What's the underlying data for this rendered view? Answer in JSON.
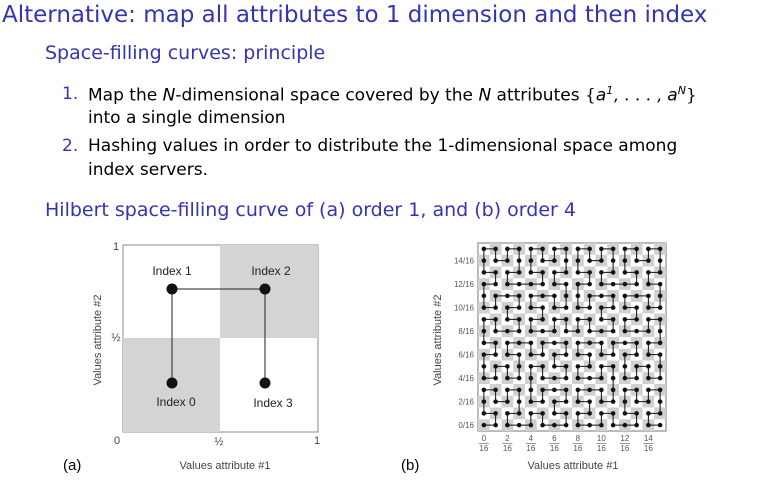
{
  "title": "Alternative: map all attributes to 1 dimension and then index",
  "subtitle": "Space-filling curves: principle",
  "list": [
    {
      "number": "1.",
      "line1": [
        "Map the ",
        "N",
        "-dimensional space covered by the ",
        "N",
        " attributes ",
        "{",
        "a",
        "1",
        ", . . . , ",
        "a",
        "N",
        "}"
      ],
      "line2": "into a single dimension"
    },
    {
      "number": "2.",
      "line1": [
        "Hashing values in order to distribute the 1-dimensional space among"
      ],
      "line2": "index servers."
    }
  ],
  "heading2": "Hilbert space-filling curve of (a) order 1, and (b) order 4",
  "figure_a": {
    "caption": "(a)",
    "x_label": "Values attribute #1",
    "y_label": "Values attribute #2",
    "x_ticks": [
      "0",
      "½",
      "1"
    ],
    "y_ticks": [
      "½",
      "1"
    ],
    "nodes": [
      "Index 0",
      "Index 1",
      "Index 2",
      "Index 3"
    ]
  },
  "figure_b": {
    "caption": "(b)",
    "x_label": "Values attribute #1",
    "y_label": "Values attribute #2",
    "x_ticks": [
      {
        "num": "0",
        "den": "16"
      },
      {
        "num": "2",
        "den": "16"
      },
      {
        "num": "4",
        "den": "16"
      },
      {
        "num": "6",
        "den": "16"
      },
      {
        "num": "8",
        "den": "16"
      },
      {
        "num": "10",
        "den": "16"
      },
      {
        "num": "12",
        "den": "16"
      },
      {
        "num": "14",
        "den": "16"
      }
    ],
    "y_ticks": [
      "0/16",
      "2/16",
      "4/16",
      "6/16",
      "8/16",
      "10/16",
      "12/16",
      "14/16"
    ]
  }
}
